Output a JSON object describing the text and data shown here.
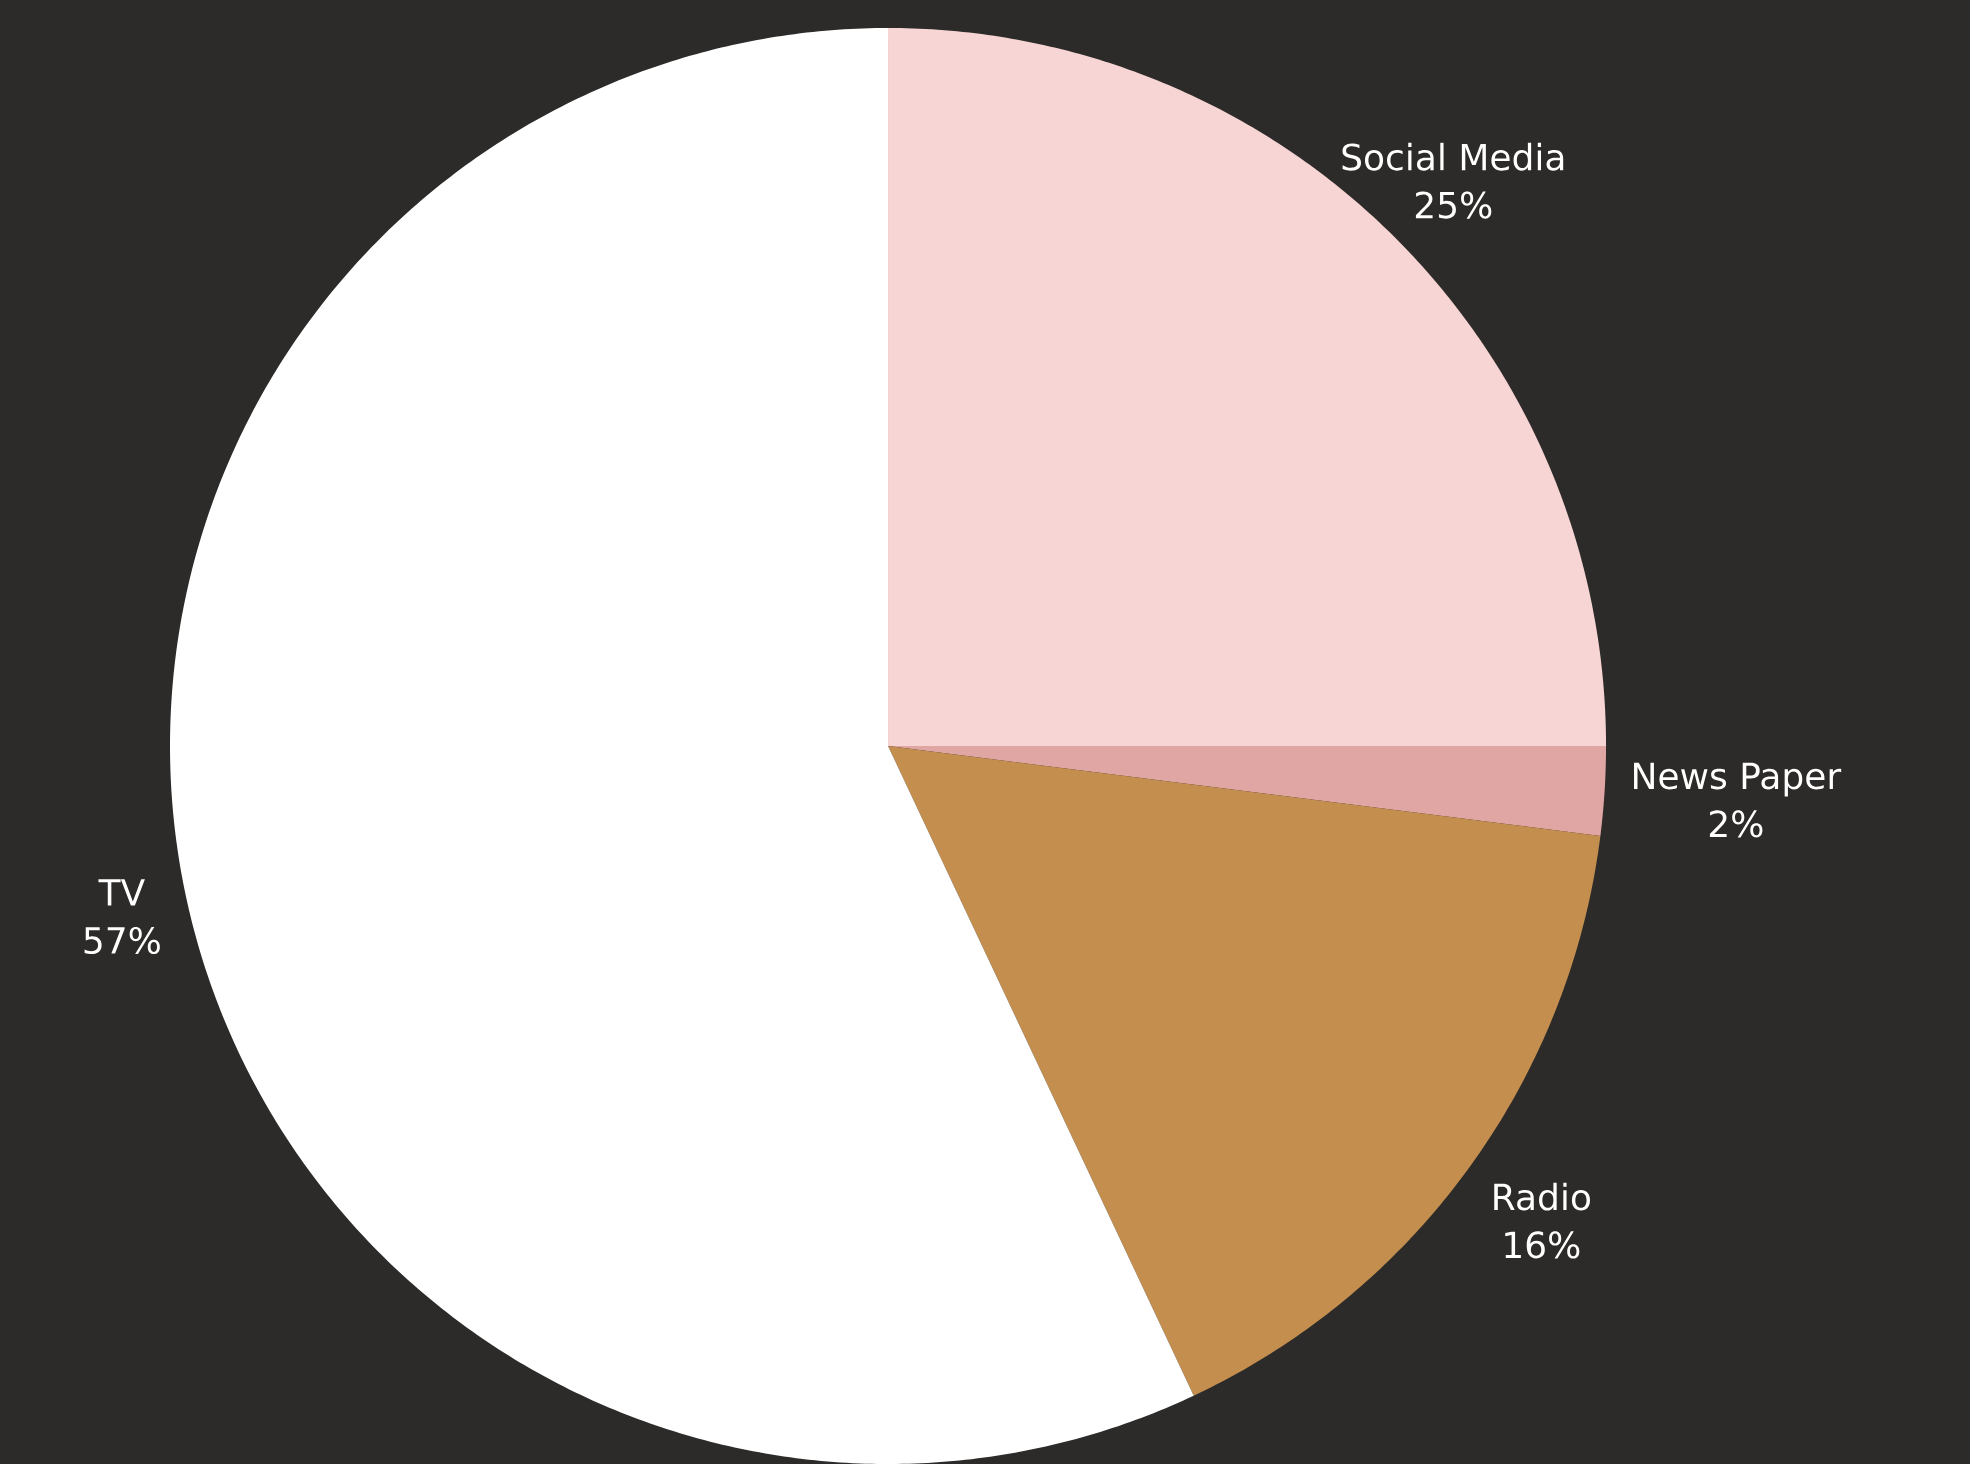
{
  "chart_data": {
    "type": "pie",
    "categories": [
      "Social Media",
      "News Paper",
      "Radio",
      "TV"
    ],
    "values": [
      25,
      2,
      16,
      57
    ],
    "value_labels": [
      "25%",
      "2%",
      "16%",
      "57%"
    ],
    "colors": [
      "#f7d5d4",
      "#e0a6a3",
      "#c48e4f",
      "#ffffff"
    ]
  }
}
